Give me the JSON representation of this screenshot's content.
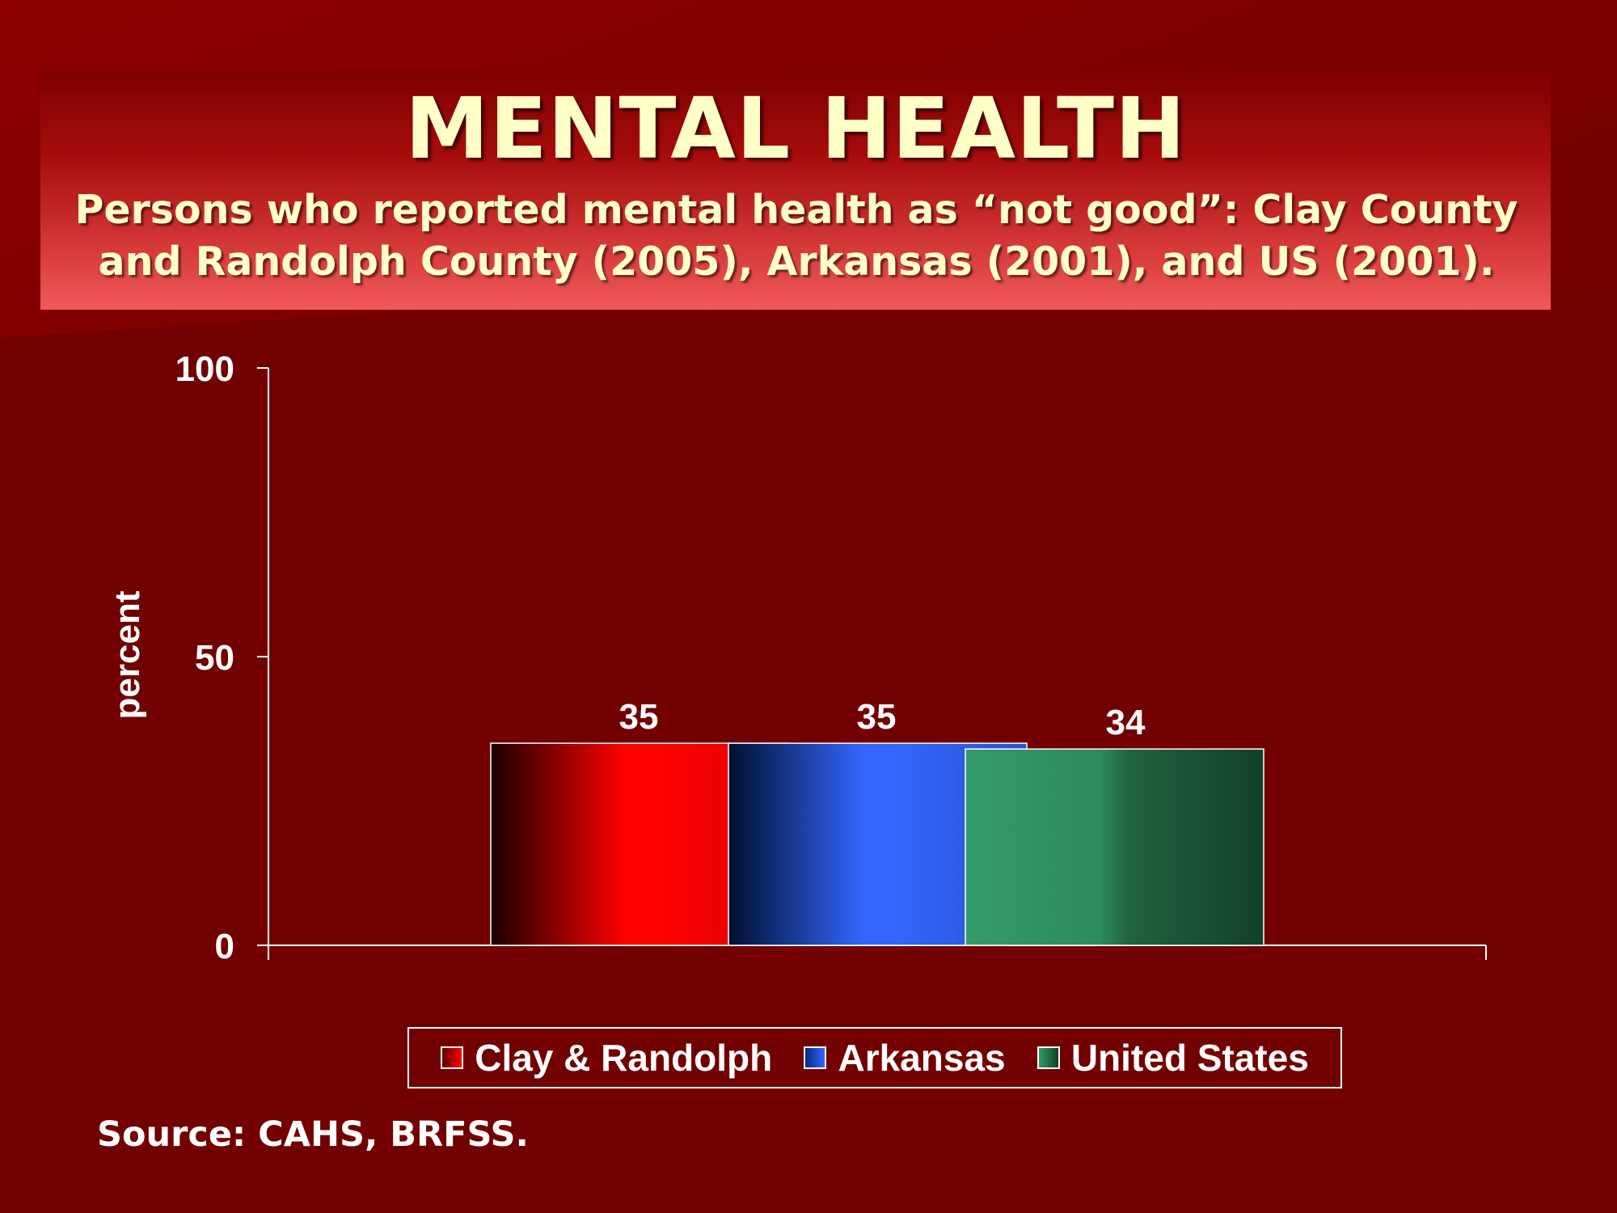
{
  "header": {
    "title": "MENTAL HEALTH",
    "subtitle": "Persons who reported mental health as “not good”: Clay County and Randolph County (2005), Arkansas (2001), and US (2001)."
  },
  "chart_data": {
    "type": "bar",
    "title": "MENTAL HEALTH",
    "subtitle": "Persons who reported mental health as “not good”: Clay County and Randolph County (2005), Arkansas (2001), and US (2001).",
    "xlabel": "",
    "ylabel": "percent",
    "ylim": [
      0,
      100
    ],
    "yticks": [
      "0",
      "50",
      "100"
    ],
    "series": [
      {
        "name": "Clay & Randolph",
        "values": [
          35
        ],
        "label": "35"
      },
      {
        "name": "Arkansas",
        "values": [
          35
        ],
        "label": "35"
      },
      {
        "name": "United States",
        "values": [
          34
        ],
        "label": "34"
      }
    ],
    "colors": {
      "Clay & Randolph": [
        "#1a0000",
        "#ff0000",
        "#ff0000",
        "#dd0000"
      ],
      "Arkansas": [
        "#001030",
        "#3366ff",
        "#3366ff",
        "#2a50cc"
      ],
      "United States": [
        "#359a6c",
        "#2e8a5e",
        "#1f6340",
        "#124028"
      ]
    },
    "grid": false,
    "legend": "bottom"
  },
  "source": "Source: CAHS, BRFSS."
}
